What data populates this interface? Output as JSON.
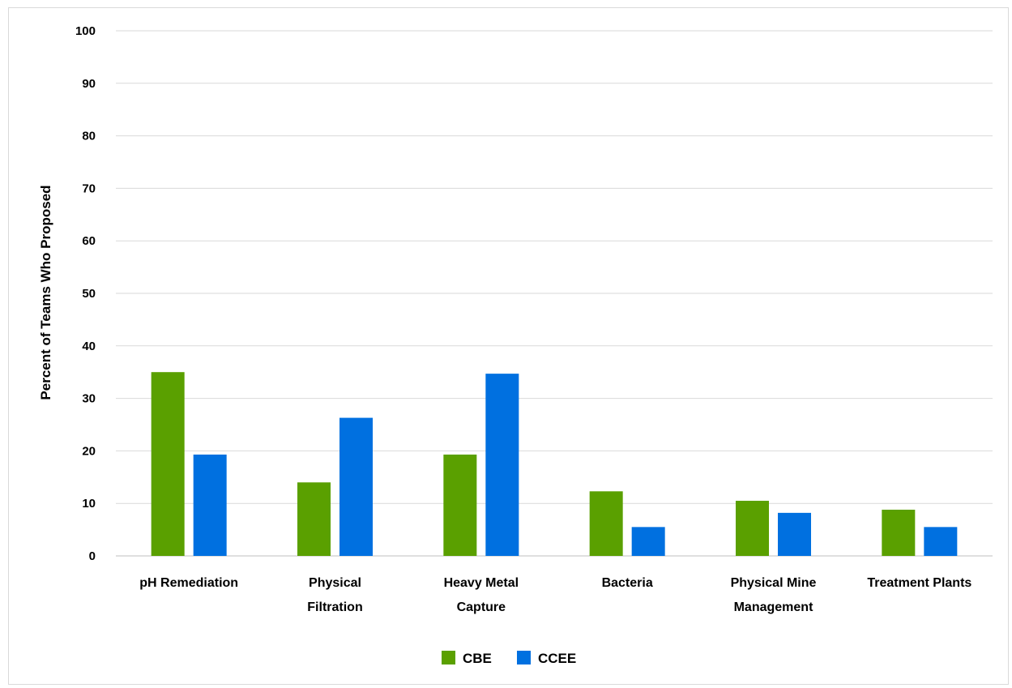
{
  "chart_data": {
    "type": "bar",
    "title": "",
    "xlabel": "",
    "ylabel": "Percent of Teams Who Proposed",
    "ylim": [
      0,
      100
    ],
    "yticks": [
      0,
      10,
      20,
      30,
      40,
      50,
      60,
      70,
      80,
      90,
      100
    ],
    "grid": true,
    "legend_position": "bottom",
    "categories": [
      [
        "pH Remediation"
      ],
      [
        "Physical",
        "Filtration"
      ],
      [
        "Heavy Metal",
        "Capture"
      ],
      [
        "Bacteria"
      ],
      [
        "Physical Mine",
        "Management"
      ],
      [
        "Treatment Plants"
      ]
    ],
    "series": [
      {
        "name": "CBE",
        "color": "#5aa000",
        "values": [
          35,
          14,
          19.3,
          12.3,
          10.5,
          8.8
        ]
      },
      {
        "name": "CCEE",
        "color": "#0070e0",
        "values": [
          19.3,
          26.3,
          34.7,
          5.5,
          8.2,
          5.5
        ]
      }
    ]
  }
}
